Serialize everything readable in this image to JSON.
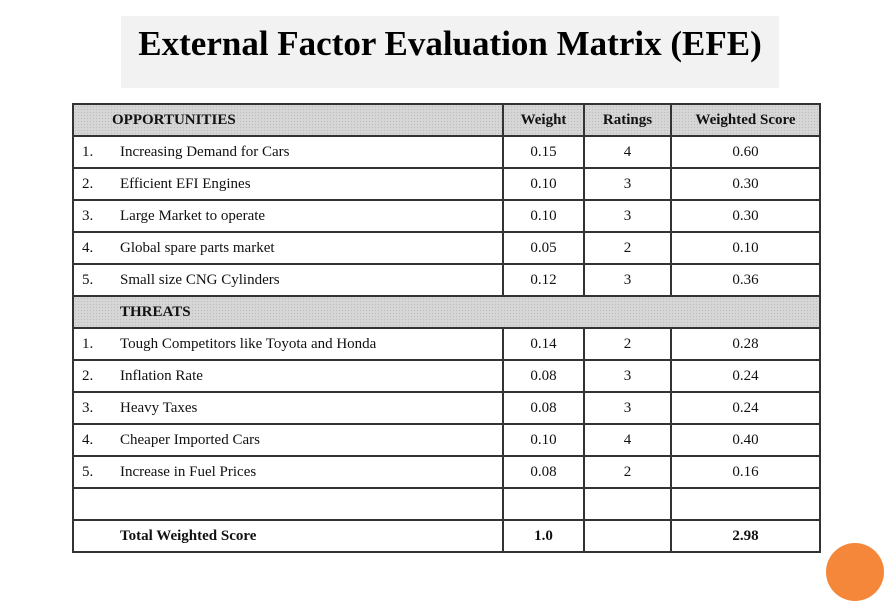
{
  "title": "External Factor Evaluation Matrix (EFE)",
  "columns": {
    "factor": "OPPORTUNITIES",
    "weight": "Weight",
    "ratings": "Ratings",
    "weighted_score": "Weighted Score"
  },
  "opportunities": [
    {
      "num": "1.",
      "factor": "Increasing Demand for Cars",
      "weight": "0.15",
      "rating": "4",
      "score": "0.60"
    },
    {
      "num": "2.",
      "factor": "Efficient EFI Engines",
      "weight": "0.10",
      "rating": "3",
      "score": "0.30"
    },
    {
      "num": "3.",
      "factor": "Large Market to operate",
      "weight": "0.10",
      "rating": "3",
      "score": "0.30"
    },
    {
      "num": "4.",
      "factor": "Global spare parts market",
      "weight": "0.05",
      "rating": "2",
      "score": "0.10"
    },
    {
      "num": "5.",
      "factor": "Small size CNG Cylinders",
      "weight": "0.12",
      "rating": "3",
      "score": "0.36"
    }
  ],
  "threats_label": "THREATS",
  "threats": [
    {
      "num": "1.",
      "factor": "Tough Competitors like Toyota and Honda",
      "weight": "0.14",
      "rating": "2",
      "score": "0.28"
    },
    {
      "num": "2.",
      "factor": "Inflation Rate",
      "weight": "0.08",
      "rating": "3",
      "score": "0.24"
    },
    {
      "num": "3.",
      "factor": "Heavy Taxes",
      "weight": "0.08",
      "rating": "3",
      "score": "0.24"
    },
    {
      "num": "4.",
      "factor": "Cheaper Imported Cars",
      "weight": "0.10",
      "rating": "4",
      "score": "0.40"
    },
    {
      "num": "5.",
      "factor": "Increase in Fuel Prices",
      "weight": "0.08",
      "rating": "2",
      "score": "0.16"
    }
  ],
  "total": {
    "label": "Total Weighted Score",
    "weight": "1.0",
    "score": "2.98"
  },
  "colors": {
    "accent_circle": "#f5873a",
    "header_fill": "#d6d6d6"
  }
}
